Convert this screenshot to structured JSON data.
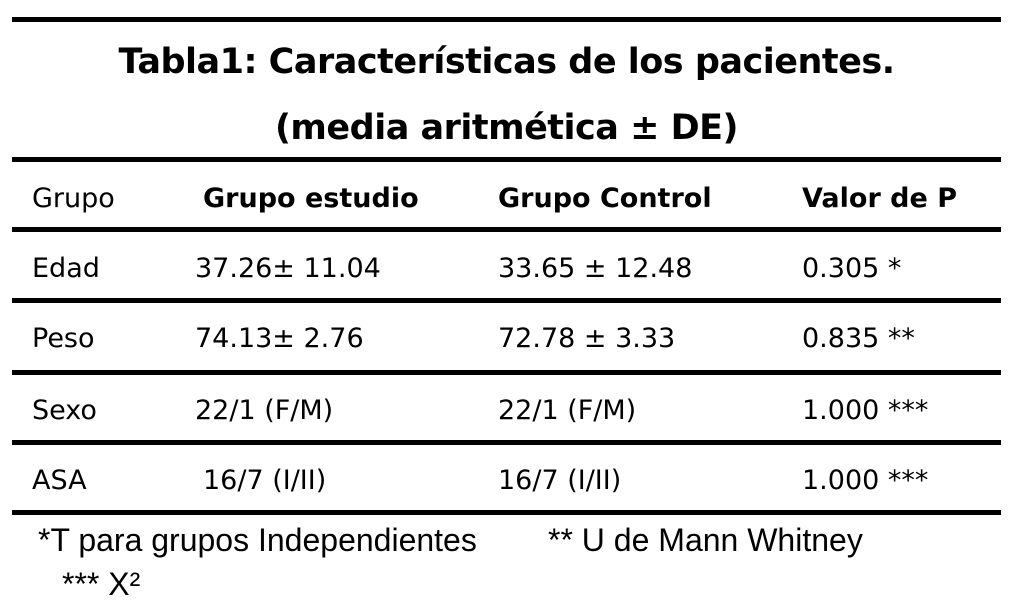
{
  "table": {
    "title_line1": "Tabla1: Características de los pacientes.",
    "title_line2": "(media aritmética ± DE)",
    "headers": [
      "Grupo",
      "Grupo estudio",
      "Grupo Control",
      "Valor de P"
    ],
    "rows": [
      [
        "Edad",
        "37.26± 11.04",
        "33.65 ± 12.48",
        "0.305 *"
      ],
      [
        "Peso",
        "74.13± 2.76",
        "72.78 ± 3.33",
        "0.835 **"
      ],
      [
        "Sexo",
        "22/1 (F/M)",
        "22/1 (F/M)",
        "1.000 ***"
      ],
      [
        "ASA",
        "16/7 (I/II)",
        "16/7 (I/II)",
        "1.000 ***"
      ]
    ]
  },
  "footnotes": {
    "line1_a": "*T para grupos Independientes",
    "line1_b": "** U de Mann Whitney",
    "line2": "*** X²"
  }
}
